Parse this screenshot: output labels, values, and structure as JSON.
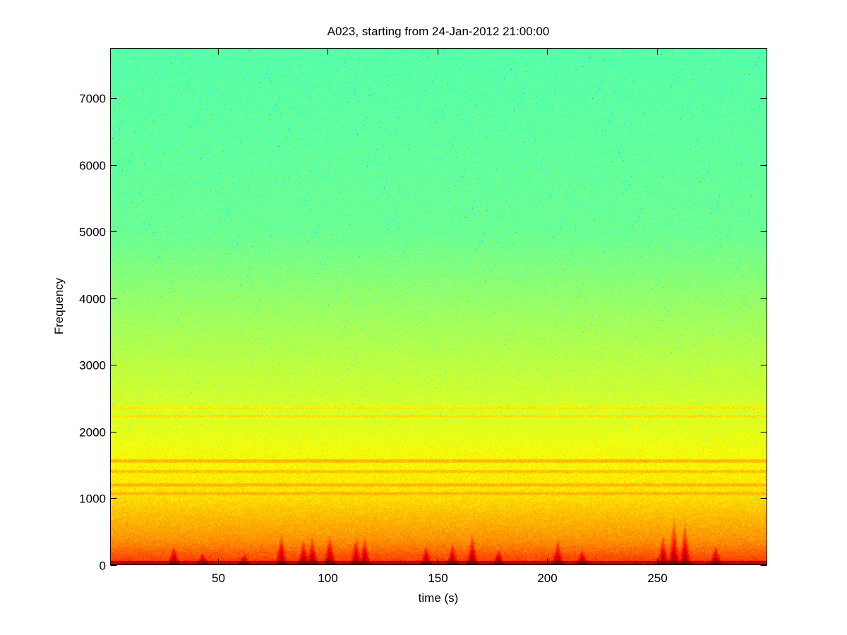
{
  "chart_data": {
    "type": "heatmap",
    "title": "A023, starting from 24-Jan-2012 21:00:00",
    "xlabel": "time (s)",
    "ylabel": "Frequency",
    "xlim": [
      1,
      300
    ],
    "ylim": [
      0,
      7750
    ],
    "xticks": [
      50,
      100,
      150,
      200,
      250
    ],
    "yticks": [
      0,
      1000,
      2000,
      3000,
      4000,
      5000,
      6000,
      7000
    ],
    "colormap": "jet",
    "grid": false,
    "legend": "none",
    "background_level_by_frequency": {
      "frequency": [
        0,
        300,
        1000,
        2000,
        3000,
        4000,
        5000,
        7750
      ],
      "level": [
        0.8,
        0.74,
        0.66,
        0.6,
        0.56,
        0.52,
        0.48,
        0.46
      ]
    },
    "horizontal_bands": [
      {
        "frequency": 1070,
        "level": 0.7
      },
      {
        "frequency": 1200,
        "level": 0.7
      },
      {
        "frequency": 1400,
        "level": 0.69
      },
      {
        "frequency": 1560,
        "level": 0.7
      },
      {
        "frequency": 2230,
        "level": 0.66
      },
      {
        "frequency": 2350,
        "level": 0.65
      }
    ],
    "low_frequency_events": [
      {
        "time": 30,
        "max_frequency": 250
      },
      {
        "time": 43,
        "max_frequency": 150
      },
      {
        "time": 62,
        "max_frequency": 120
      },
      {
        "time": 79,
        "max_frequency": 450
      },
      {
        "time": 89,
        "max_frequency": 350
      },
      {
        "time": 93,
        "max_frequency": 380
      },
      {
        "time": 101,
        "max_frequency": 420
      },
      {
        "time": 113,
        "max_frequency": 400
      },
      {
        "time": 117,
        "max_frequency": 380
      },
      {
        "time": 145,
        "max_frequency": 250
      },
      {
        "time": 157,
        "max_frequency": 300
      },
      {
        "time": 166,
        "max_frequency": 450
      },
      {
        "time": 178,
        "max_frequency": 200
      },
      {
        "time": 205,
        "max_frequency": 350
      },
      {
        "time": 216,
        "max_frequency": 200
      },
      {
        "time": 253,
        "max_frequency": 400
      },
      {
        "time": 258,
        "max_frequency": 700
      },
      {
        "time": 263,
        "max_frequency": 650
      },
      {
        "time": 277,
        "max_frequency": 250
      }
    ]
  }
}
